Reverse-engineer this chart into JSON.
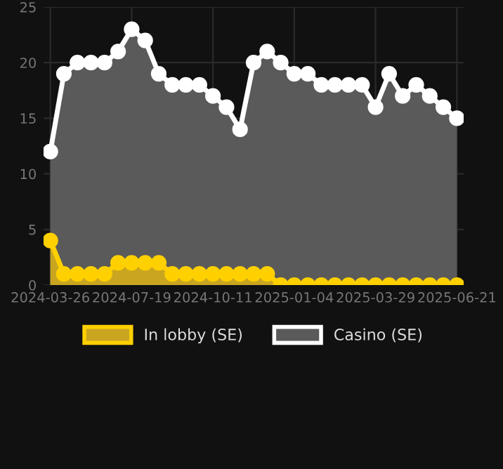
{
  "chart_data": {
    "type": "area",
    "categories": [
      "2024-03-26",
      null,
      null,
      null,
      null,
      null,
      "2024-07-19",
      null,
      null,
      null,
      null,
      null,
      "2024-10-11",
      null,
      null,
      null,
      null,
      null,
      "2025-01-04",
      null,
      null,
      null,
      null,
      null,
      "2025-03-29",
      null,
      null,
      null,
      null,
      null,
      "2025-06-21"
    ],
    "series": [
      {
        "name": "In lobby (SE)",
        "color": "#ffd000",
        "values": [
          4,
          1,
          1,
          1,
          1,
          2,
          2,
          2,
          2,
          1,
          1,
          1,
          1,
          1,
          1,
          1,
          1,
          0,
          0,
          0,
          0,
          0,
          0,
          0,
          0,
          0,
          0,
          0,
          0,
          0,
          0
        ]
      },
      {
        "name": "Casino (SE)",
        "color": "#ffffff",
        "values": [
          12,
          19,
          20,
          20,
          20,
          21,
          23,
          22,
          19,
          18,
          18,
          18,
          17,
          16,
          14,
          20,
          21,
          20,
          19,
          19,
          18,
          18,
          18,
          18,
          16,
          19,
          17,
          18,
          17,
          16,
          15
        ]
      }
    ],
    "ylim": [
      0,
      25
    ],
    "yticks": [
      0,
      5,
      10,
      15,
      20,
      25
    ],
    "grid": true,
    "legend": "bottom",
    "marker": "circle"
  }
}
